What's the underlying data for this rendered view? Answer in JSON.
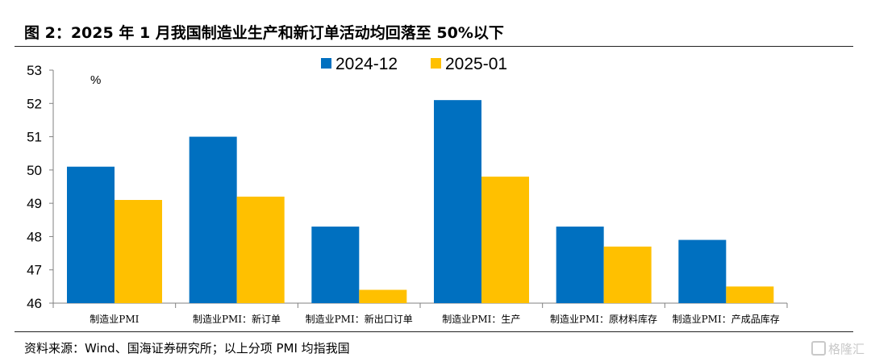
{
  "header": {
    "title": "图 2：2025 年 1 月我国制造业生产和新订单活动均回落至 50%以下"
  },
  "footer": {
    "source": "资料来源：Wind、国海证券研究所；以上分项 PMI 均指我国"
  },
  "watermark": {
    "text": "格隆汇"
  },
  "chart_data": {
    "type": "bar",
    "title": "",
    "unit_label": "%",
    "categories": [
      "制造业PMI",
      "制造业PMI：新订单",
      "制造业PMI：新出口订单",
      "制造业PMI：生产",
      "制造业PMI：原材料库存",
      "制造业PMI：产成品库存"
    ],
    "series": [
      {
        "name": "2024-12",
        "color": "#0070C0",
        "values": [
          50.1,
          51.0,
          48.3,
          52.1,
          48.3,
          47.9
        ]
      },
      {
        "name": "2025-01",
        "color": "#FFC000",
        "values": [
          49.1,
          49.2,
          46.4,
          49.8,
          47.7,
          46.5
        ]
      }
    ],
    "ylim": [
      46,
      53
    ],
    "yticks": [
      46,
      47,
      48,
      49,
      50,
      51,
      52,
      53
    ],
    "grid": false,
    "legend_position": "top-center"
  }
}
